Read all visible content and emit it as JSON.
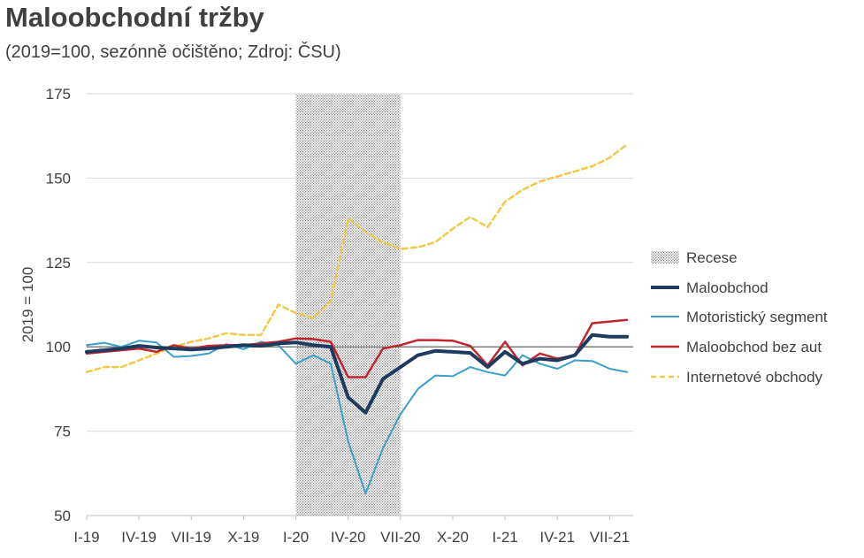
{
  "title": "Maloobchodní tržby",
  "subtitle": "(2019=100, sezónně očištěno; Zdroj: ČSU)",
  "chart_data": {
    "type": "line",
    "ylabel": "2019 = 100",
    "ylim": [
      50,
      175
    ],
    "yticks": [
      50,
      75,
      100,
      125,
      150,
      175
    ],
    "reference_line": 100,
    "xlabels": [
      "I-19",
      "IV-19",
      "VII-19",
      "X-19",
      "I-20",
      "IV-20",
      "VII-20",
      "X-20",
      "I-21",
      "IV-21",
      "VII-21"
    ],
    "recession": {
      "label": "Recese",
      "start_month": 12,
      "end_month": 18
    },
    "series": [
      {
        "name": "Recese",
        "key": "recession"
      },
      {
        "name": "Maloobchod",
        "color": "#1f3a5f",
        "style": "solid",
        "width": 4,
        "values": [
          98.5,
          99.0,
          99.5,
          100.3,
          99.8,
          99.5,
          99.2,
          99.5,
          100.0,
          100.5,
          100.3,
          101.0,
          101.3,
          100.5,
          100.0,
          85.0,
          80.5,
          90.5,
          94.0,
          97.5,
          98.8,
          98.5,
          98.2,
          94.0,
          98.5,
          95.0,
          96.5,
          96.0,
          97.5,
          103.5,
          103.0,
          103.0
        ]
      },
      {
        "name": "Motoristický segment",
        "color": "#3a9fcb",
        "style": "solid",
        "width": 2,
        "values": [
          100.5,
          101.2,
          100.0,
          101.8,
          101.3,
          97.0,
          97.3,
          98.0,
          100.8,
          99.3,
          101.5,
          100.5,
          95.0,
          97.5,
          95.0,
          72.0,
          56.5,
          70.0,
          80.0,
          87.5,
          91.5,
          91.3,
          94.0,
          92.5,
          91.5,
          97.5,
          95.0,
          93.5,
          96.0,
          95.8,
          93.5,
          92.5
        ]
      },
      {
        "name": "Maloobchod bez aut",
        "color": "#c0262d",
        "style": "solid",
        "width": 2.5,
        "values": [
          98.0,
          98.5,
          99.0,
          99.5,
          98.5,
          100.5,
          99.5,
          100.3,
          100.5,
          100.5,
          101.0,
          101.5,
          102.5,
          102.3,
          101.5,
          91.0,
          91.0,
          99.5,
          100.5,
          102.0,
          102.0,
          101.8,
          100.3,
          94.5,
          101.5,
          94.5,
          98.0,
          96.5,
          97.5,
          107.0,
          107.5,
          108.0
        ]
      },
      {
        "name": "Internetové obchody",
        "color": "#f0c94a",
        "style": "dashed",
        "width": 2.5,
        "values": [
          92.5,
          94.0,
          94.0,
          96.0,
          98.0,
          100.0,
          101.5,
          102.5,
          104.0,
          103.5,
          103.5,
          112.5,
          110.0,
          108.5,
          113.5,
          138.0,
          134.0,
          131.0,
          129.0,
          129.5,
          131.0,
          135.0,
          138.5,
          135.5,
          143.0,
          146.5,
          149.0,
          150.5,
          152.0,
          153.5,
          156.0,
          160.0
        ]
      }
    ]
  }
}
